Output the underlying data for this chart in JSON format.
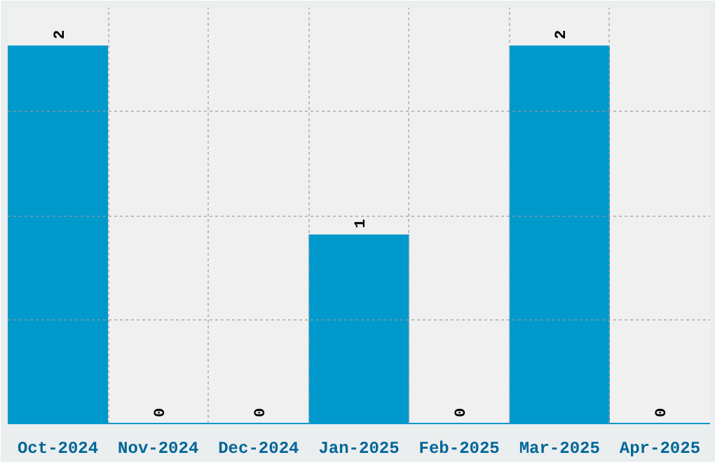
{
  "chart_data": {
    "type": "bar",
    "categories": [
      "Oct-2024",
      "Nov-2024",
      "Dec-2024",
      "Jan-2025",
      "Feb-2025",
      "Mar-2025",
      "Apr-2025"
    ],
    "values": [
      2,
      0,
      0,
      1,
      0,
      2,
      0
    ],
    "color": "#0099cc",
    "ylim": [
      0,
      2.2
    ],
    "yticks": [
      {
        "value": 0.55,
        "label": null
      },
      {
        "value": 1.1,
        "label": null
      },
      {
        "value": 1.65,
        "label": null
      }
    ],
    "grid": true,
    "data_labels": true
  }
}
